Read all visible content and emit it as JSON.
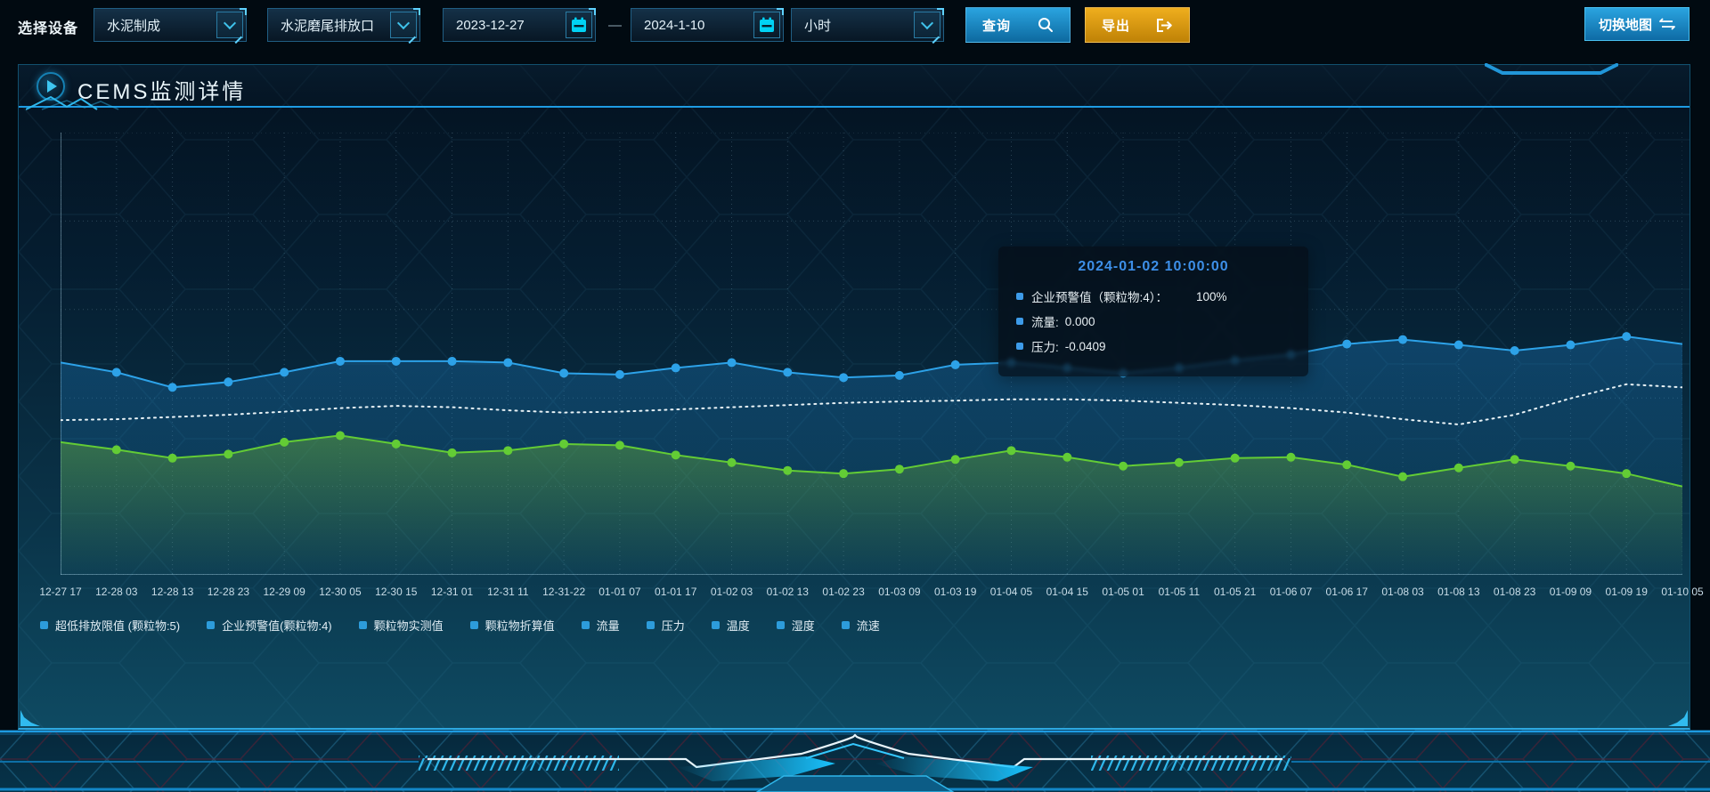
{
  "toolbar": {
    "device_label": "选择设备",
    "device_select": {
      "value": "水泥制成"
    },
    "outlet_select": {
      "value": "水泥磨尾排放口"
    },
    "date_start": "2023-12-27",
    "date_separator": "—",
    "date_end": "2024-1-10",
    "interval_select": {
      "value": "小时"
    },
    "query_button": "查询",
    "export_button": "导出",
    "switch_map_button": "切换地图"
  },
  "panel": {
    "title": "CEMS监测详情"
  },
  "tooltip": {
    "title": "2024-01-02 10:00:00",
    "title_color": "#3d8fe8",
    "marker_color": "#3d9be9",
    "rows": [
      {
        "label": "企业预警值（颗粒物:4）：",
        "value": "100%",
        "wide_gap": true
      },
      {
        "label": "流量:",
        "value": "0.000",
        "wide_gap": false
      },
      {
        "label": "压力:",
        "value": "-0.0409",
        "wide_gap": false
      }
    ]
  },
  "legend": {
    "marker_color": "#2d9cdb",
    "items": [
      "超低排放限值 (颗粒物:5)",
      "企业预警值(颗粒物:4)",
      "颗粒物实测值",
      "颗粒物折算值",
      "流量",
      "压力",
      "温度",
      "湿度",
      "流速"
    ]
  },
  "chart_data": {
    "type": "line",
    "title": "",
    "xlabel": "",
    "ylabel": "",
    "note": "No numeric y-axis is rendered on screen; series values are estimated as percent of plot height from the bottom axis. Tooltip snapshot at 2024-01-02 10:00:00: 企业预警值(颗粒物:4)=100%, 流量=0.000, 压力=-0.0409.",
    "legend_position": "bottom",
    "grid": {
      "horizontal_lines": 6,
      "vertical_line_per_point": true,
      "style": "dotted"
    },
    "x_labels": [
      "12-27 17",
      "12-28 03",
      "12-28 13",
      "12-28 23",
      "12-29 09",
      "12-30 05",
      "12-30 15",
      "12-31 01",
      "12-31 11",
      "12-31-22",
      "01-01 07",
      "01-01 17",
      "01-02 03",
      "01-02 13",
      "01-02 23",
      "01-03 09",
      "01-03 19",
      "01-04 05",
      "01-04 15",
      "01-05 01",
      "01-05 11",
      "01-05 21",
      "01-06 07",
      "01-06 17",
      "01-08 03",
      "01-08 13",
      "01-08 23",
      "01-09 09",
      "01-09 19",
      "01-10 05"
    ],
    "series": [
      {
        "name": "企业预警值（颗粒物:4）",
        "color": "#2da2e8",
        "line_style": "solid",
        "markers": true,
        "area": true,
        "area_gradient": [
          "rgba(30,135,210,0.32)",
          "rgba(30,135,210,0.04)"
        ],
        "values": [
          48.0,
          45.8,
          42.4,
          43.6,
          45.8,
          48.3,
          48.3,
          48.3,
          48.0,
          45.6,
          45.3,
          46.8,
          48.0,
          45.8,
          44.6,
          45.1,
          47.5,
          48.0,
          46.8,
          45.6,
          46.8,
          48.5,
          49.8,
          52.2,
          53.2,
          52.0,
          50.7,
          52.0,
          53.9,
          52.2
        ]
      },
      {
        "name": "压力",
        "color": "#e8f2f6",
        "line_style": "dotted",
        "markers": false,
        "area": false,
        "area_gradient": null,
        "values": [
          35.0,
          35.2,
          35.7,
          36.2,
          36.9,
          37.7,
          38.2,
          37.9,
          37.2,
          36.7,
          36.9,
          37.4,
          37.9,
          38.4,
          38.9,
          39.2,
          39.4,
          39.7,
          39.7,
          39.4,
          38.9,
          38.4,
          37.7,
          36.7,
          35.2,
          34.0,
          36.2,
          39.9,
          43.1,
          42.4
        ]
      },
      {
        "name": "流量",
        "color": "#63cc35",
        "line_style": "solid",
        "markers": true,
        "area": true,
        "area_gradient": [
          "rgba(105,175,55,0.45)",
          "rgba(105,175,55,0.02)"
        ],
        "values": [
          30.0,
          28.3,
          26.4,
          27.3,
          30.0,
          31.5,
          29.6,
          27.6,
          28.1,
          29.6,
          29.3,
          27.1,
          25.4,
          23.6,
          22.9,
          23.9,
          26.1,
          28.1,
          26.6,
          24.6,
          25.4,
          26.4,
          26.6,
          24.9,
          22.2,
          24.2,
          26.1,
          24.6,
          22.9,
          20.0
        ]
      }
    ]
  }
}
